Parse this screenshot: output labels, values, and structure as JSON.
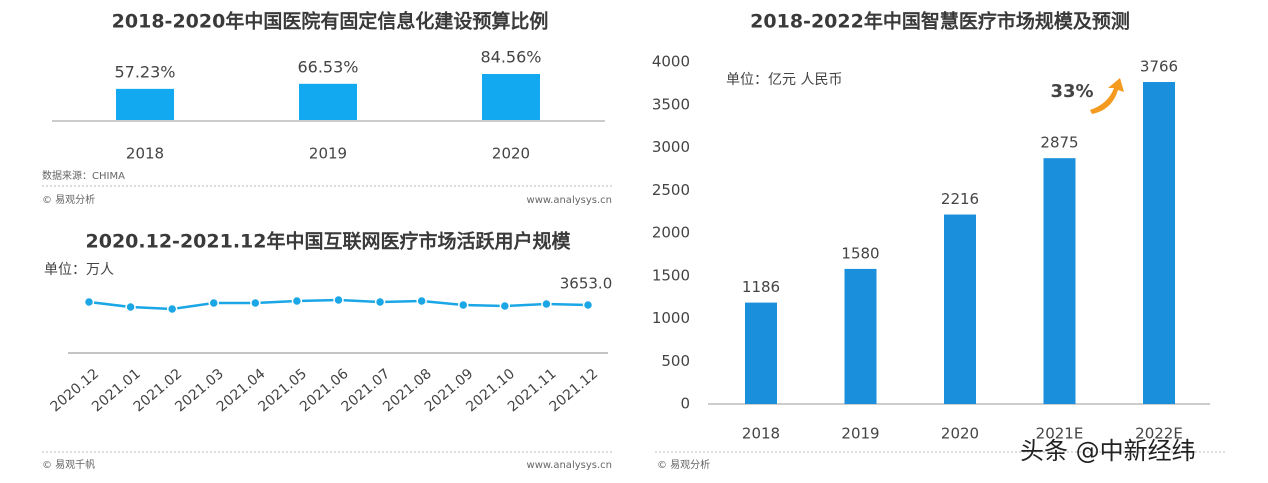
{
  "chart_data": [
    {
      "type": "bar",
      "title": "2018-2020年中国医院有固定信息化建设预算比例",
      "categories": [
        "2018",
        "2019",
        "2020"
      ],
      "values": [
        57.23,
        66.53,
        84.56
      ],
      "value_labels": [
        "57.23%",
        "66.53%",
        "84.56%"
      ],
      "color": "#12a9f0",
      "source": "数据来源：CHIMA",
      "footer_left": "© 易观分析",
      "footer_right": "www.analysys.cn"
    },
    {
      "type": "line",
      "title": "2020.12-2021.12年中国互联网医疗市场活跃用户规模",
      "unit": "单位：万人",
      "categories": [
        "2020.12",
        "2021.01",
        "2021.02",
        "2021.03",
        "2021.04",
        "2021.05",
        "2021.06",
        "2021.07",
        "2021.08",
        "2021.09",
        "2021.10",
        "2021.11",
        "2021.12"
      ],
      "values": [
        3881,
        3501,
        3349,
        3805,
        3805,
        3957,
        4033,
        3881,
        3957,
        3653,
        3577,
        3729,
        3653
      ],
      "value_labels": [
        null,
        null,
        null,
        null,
        null,
        null,
        null,
        null,
        null,
        null,
        null,
        null,
        "3653.0"
      ],
      "color": "#1ba6e6",
      "footer_left": "© 易观千帆",
      "footer_right": "www.analysys.cn"
    },
    {
      "type": "bar",
      "title": "2018-2022年中国智慧医疗市场规模及预测",
      "unit": "单位：亿元 人民币",
      "categories": [
        "2018",
        "2019",
        "2020",
        "2021E",
        "2022E"
      ],
      "values": [
        1186,
        1580,
        2216,
        2875,
        3766
      ],
      "color": "#1a90dc",
      "ylim": [
        0,
        4000
      ],
      "yticks": [
        0,
        500,
        1000,
        1500,
        2000,
        2500,
        3000,
        3500,
        4000
      ],
      "annotation": "33%",
      "footer_left": "© 易观分析"
    }
  ],
  "overlay_text": "头条 @中新经纬"
}
